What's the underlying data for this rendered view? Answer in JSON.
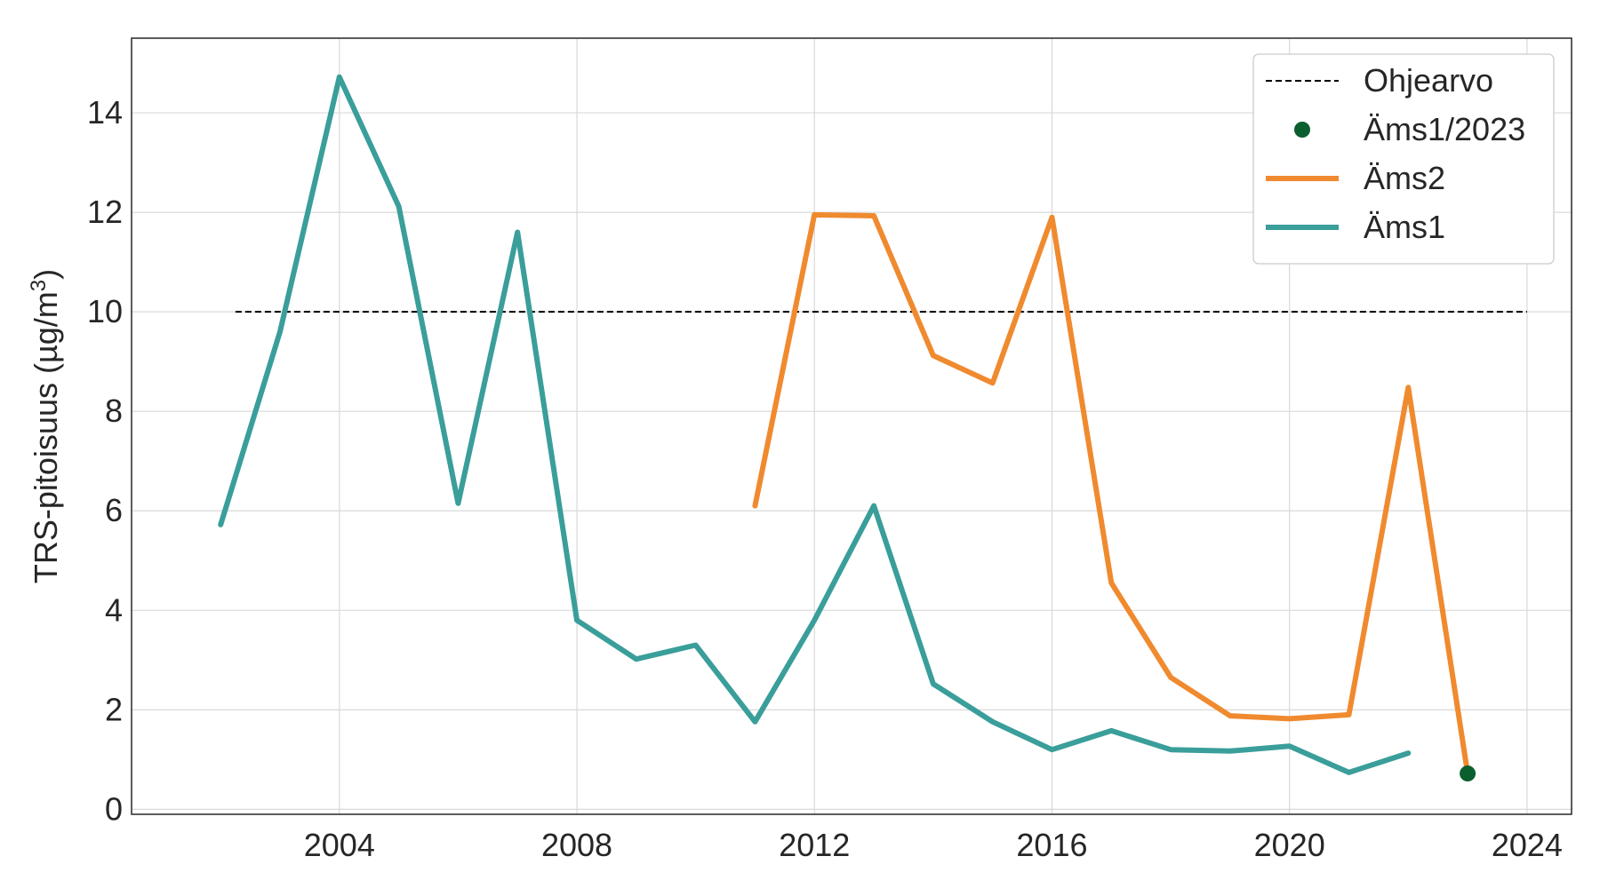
{
  "chart_data": {
    "type": "line",
    "title": "",
    "xlabel": "",
    "ylabel": "TRS-pitoisuus (µg/m",
    "ylabel_superscript": "3",
    "ylabel_suffix": ")",
    "xlim": [
      2000.5,
      2024.75
    ],
    "ylim": [
      -0.1,
      15.5
    ],
    "x_ticks": [
      2004,
      2008,
      2012,
      2016,
      2020,
      2024
    ],
    "x_tick_labels": [
      "2004",
      "2008",
      "2012",
      "2016",
      "2020",
      "2024"
    ],
    "y_ticks": [
      0,
      2,
      4,
      6,
      8,
      10,
      12,
      14
    ],
    "y_tick_labels": [
      "0",
      "2",
      "4",
      "6",
      "8",
      "10",
      "12",
      "14"
    ],
    "grid": true,
    "legend_position": "top-right",
    "series": [
      {
        "name": "Ohjearvo",
        "kind": "line",
        "style": "dashed",
        "color": "#000000",
        "x": [
          2002.25,
          2024
        ],
        "y": [
          10,
          10
        ]
      },
      {
        "name": "Äms1/2023",
        "kind": "scatter",
        "color": "#0b5e2e",
        "x": [
          2023
        ],
        "y": [
          0.72
        ]
      },
      {
        "name": "Äms2",
        "kind": "line",
        "color": "#f08a2f",
        "x": [
          2011,
          2012,
          2013,
          2014,
          2015,
          2016,
          2017,
          2018,
          2019,
          2020,
          2021,
          2022,
          2023
        ],
        "y": [
          6.1,
          11.95,
          11.93,
          9.12,
          8.57,
          11.9,
          4.55,
          2.65,
          1.88,
          1.82,
          1.9,
          8.48,
          0.72
        ]
      },
      {
        "name": "Äms1",
        "kind": "line",
        "color": "#3a9e9a",
        "x": [
          2002,
          2003,
          2004,
          2005,
          2006,
          2007,
          2008,
          2009,
          2010,
          2011,
          2012,
          2013,
          2014,
          2015,
          2016,
          2017,
          2018,
          2019,
          2020,
          2021,
          2022
        ],
        "y": [
          5.72,
          9.6,
          14.72,
          12.12,
          6.15,
          11.6,
          3.8,
          3.02,
          3.3,
          1.76,
          3.8,
          6.1,
          2.52,
          1.76,
          1.2,
          1.58,
          1.2,
          1.17,
          1.27,
          0.74,
          1.13
        ]
      }
    ],
    "legend_order": [
      "Ohjearvo",
      "Äms1/2023",
      "Äms2",
      "Äms1"
    ]
  }
}
